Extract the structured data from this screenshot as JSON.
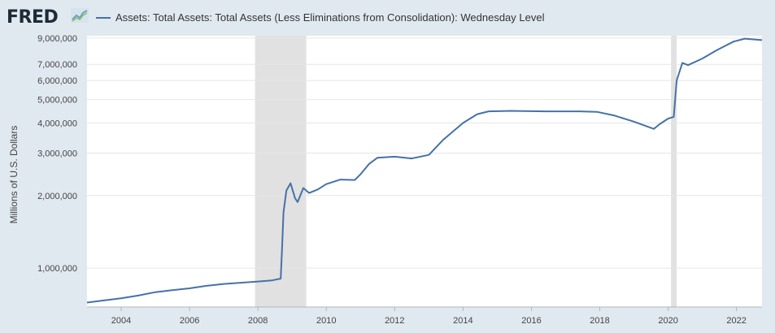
{
  "header": {
    "logo_text": "FRED"
  },
  "chart_data": {
    "type": "line",
    "title": "",
    "series_name": "Assets: Total Assets: Total Assets (Less Eliminations from Consolidation): Wednesday Level",
    "xlabel": "",
    "ylabel": "Millions of U.S. Dollars",
    "y_scale": "log",
    "ylim": [
      690000,
      9200000
    ],
    "xlim": [
      "2003-01-01",
      "2022-09-30"
    ],
    "y_ticks": [
      {
        "value": 1000000,
        "label": "1,000,000"
      },
      {
        "value": 2000000,
        "label": "2,000,000"
      },
      {
        "value": 3000000,
        "label": "3,000,000"
      },
      {
        "value": 4000000,
        "label": "4,000,000"
      },
      {
        "value": 5000000,
        "label": "5,000,000"
      },
      {
        "value": 6000000,
        "label": "6,000,000"
      },
      {
        "value": 7000000,
        "label": "7,000,000"
      },
      {
        "value": 9000000,
        "label": "9,000,000"
      }
    ],
    "x_ticks": [
      "2004",
      "2006",
      "2008",
      "2010",
      "2012",
      "2014",
      "2016",
      "2018",
      "2020",
      "2022"
    ],
    "recessions": [
      {
        "start": "2007-12-01",
        "end": "2009-06-01"
      },
      {
        "start": "2020-02-01",
        "end": "2020-04-01"
      }
    ],
    "line_color": "#4572a7",
    "shade_color": "#e1e1e1",
    "grid": true,
    "series": [
      {
        "name": "Assets: Total Assets: Total Assets (Less Eliminations from Consolidation): Wednesday Level",
        "points": [
          [
            "2003-01-01",
            720000
          ],
          [
            "2003-07-01",
            735000
          ],
          [
            "2004-01-01",
            750000
          ],
          [
            "2004-07-01",
            770000
          ],
          [
            "2005-01-01",
            795000
          ],
          [
            "2005-07-01",
            810000
          ],
          [
            "2006-01-01",
            825000
          ],
          [
            "2006-07-01",
            845000
          ],
          [
            "2007-01-01",
            860000
          ],
          [
            "2007-07-01",
            870000
          ],
          [
            "2008-01-01",
            880000
          ],
          [
            "2008-06-01",
            890000
          ],
          [
            "2008-09-01",
            905000
          ],
          [
            "2008-09-15",
            1200000
          ],
          [
            "2008-10-01",
            1700000
          ],
          [
            "2008-11-01",
            2100000
          ],
          [
            "2008-12-15",
            2250000
          ],
          [
            "2009-02-01",
            1950000
          ],
          [
            "2009-03-01",
            1880000
          ],
          [
            "2009-05-01",
            2150000
          ],
          [
            "2009-07-01",
            2050000
          ],
          [
            "2009-10-01",
            2120000
          ],
          [
            "2010-01-01",
            2230000
          ],
          [
            "2010-06-01",
            2330000
          ],
          [
            "2010-11-01",
            2320000
          ],
          [
            "2011-01-01",
            2450000
          ],
          [
            "2011-04-01",
            2700000
          ],
          [
            "2011-07-01",
            2870000
          ],
          [
            "2012-01-01",
            2900000
          ],
          [
            "2012-07-01",
            2850000
          ],
          [
            "2013-01-01",
            2950000
          ],
          [
            "2013-06-01",
            3400000
          ],
          [
            "2014-01-01",
            4000000
          ],
          [
            "2014-06-01",
            4350000
          ],
          [
            "2014-10-01",
            4470000
          ],
          [
            "2015-06-01",
            4490000
          ],
          [
            "2016-06-01",
            4470000
          ],
          [
            "2017-06-01",
            4470000
          ],
          [
            "2017-12-01",
            4450000
          ],
          [
            "2018-06-01",
            4300000
          ],
          [
            "2019-01-01",
            4050000
          ],
          [
            "2019-08-01",
            3780000
          ],
          [
            "2019-10-01",
            3950000
          ],
          [
            "2020-01-01",
            4170000
          ],
          [
            "2020-03-01",
            4240000
          ],
          [
            "2020-04-01",
            6000000
          ],
          [
            "2020-06-01",
            7100000
          ],
          [
            "2020-08-01",
            6950000
          ],
          [
            "2021-01-01",
            7400000
          ],
          [
            "2021-06-01",
            8000000
          ],
          [
            "2021-12-01",
            8700000
          ],
          [
            "2022-04-01",
            8950000
          ],
          [
            "2022-09-30",
            8820000
          ]
        ]
      }
    ]
  }
}
